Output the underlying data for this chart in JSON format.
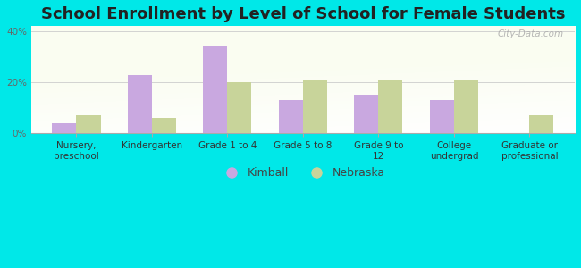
{
  "title": "School Enrollment by Level of School for Female Students",
  "categories": [
    "Nursery,\npreschool",
    "Kindergarten",
    "Grade 1 to 4",
    "Grade 5 to 8",
    "Grade 9 to\n12",
    "College\nundergrad",
    "Graduate or\nprofessional"
  ],
  "kimball": [
    4,
    23,
    34,
    13,
    15,
    13,
    0
  ],
  "nebraska": [
    7,
    6,
    20,
    21,
    21,
    21,
    7
  ],
  "kimball_color": "#c9a8e0",
  "nebraska_color": "#c8d49a",
  "background_color": "#00e8e8",
  "ylim": [
    0,
    42
  ],
  "yticks": [
    0,
    20,
    40
  ],
  "ytick_labels": [
    "0%",
    "20%",
    "40%"
  ],
  "bar_width": 0.32,
  "title_fontsize": 13,
  "tick_fontsize": 7.5,
  "legend_fontsize": 9,
  "watermark": "City-Data.com"
}
